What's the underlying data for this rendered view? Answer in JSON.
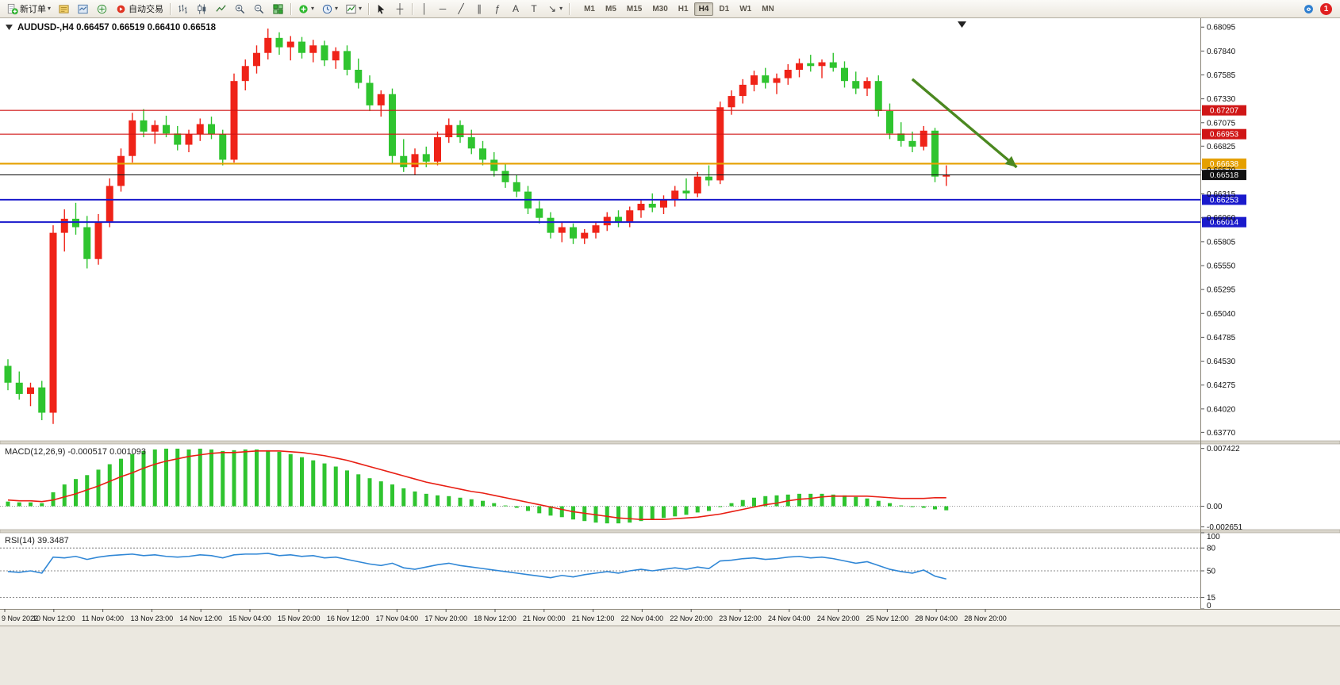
{
  "toolbar": {
    "new_order_label": "新订单",
    "auto_trading_label": "自动交易",
    "timeframes": [
      "M1",
      "M5",
      "M15",
      "M30",
      "H1",
      "H4",
      "D1",
      "W1",
      "MN"
    ],
    "active_timeframe": "H4",
    "notification_count": "1",
    "icons": {
      "caret": "▾",
      "vline": "│",
      "hline": "─",
      "trendline": "╱",
      "channel": "∥",
      "fibonacci": "ƒ",
      "text_tool": "A",
      "label_tool": "T",
      "arrows_tool": "↘",
      "crosshair": "┼"
    }
  },
  "chart_data": {
    "type": "candlestick",
    "symbol": "AUDUSD-,H4",
    "ohlc_display": "0.66457 0.66519 0.66410 0.66518",
    "y_range": [
      0.6368,
      0.6819
    ],
    "colors": {
      "up": "#ef2318",
      "down": "#2fc42f",
      "macd_hist": "#2fc42f",
      "macd_signal": "#e81f14",
      "rsi_line": "#3087d6",
      "annotation": "#4b8820"
    },
    "price_axis_ticks": [
      "0.68095",
      "0.67840",
      "0.67585",
      "0.67330",
      "0.67075",
      "0.66825",
      "0.66570",
      "0.66315",
      "0.66060",
      "0.65805",
      "0.65550",
      "0.65295",
      "0.65040",
      "0.64785",
      "0.64530",
      "0.64275",
      "0.64020",
      "0.63770"
    ],
    "horizontal_lines": [
      {
        "price": 0.67207,
        "label": "0.67207",
        "color": "#d01616",
        "width": 1.2
      },
      {
        "price": 0.66953,
        "label": "0.66953",
        "color": "#d01616",
        "width": 1.2
      },
      {
        "price": 0.66638,
        "label": "0.66638",
        "color": "#e5a000",
        "width": 2.2
      },
      {
        "price": 0.66518,
        "label": "0.66518",
        "color": "#111111",
        "width": 1
      },
      {
        "price": 0.66253,
        "label": "0.66253",
        "color": "#1a1acc",
        "width": 2
      },
      {
        "price": 0.66014,
        "label": "0.66014",
        "color": "#1a1acc",
        "width": 2
      }
    ],
    "arrow_annotation": {
      "x1_frac": 0.76,
      "price1": 0.6754,
      "x2_frac": 0.847,
      "price2": 0.666
    },
    "time_labels": [
      "9 Nov 2022",
      "10 Nov 12:00",
      "11 Nov 04:00",
      "13 Nov 23:00",
      "14 Nov 12:00",
      "15 Nov 04:00",
      "15 Nov 20:00",
      "16 Nov 12:00",
      "17 Nov 04:00",
      "17 Nov 20:00",
      "18 Nov 12:00",
      "21 Nov 00:00",
      "21 Nov 12:00",
      "22 Nov 04:00",
      "22 Nov 20:00",
      "23 Nov 12:00",
      "24 Nov 04:00",
      "24 Nov 20:00",
      "25 Nov 12:00",
      "28 Nov 04:00",
      "28 Nov 20:00"
    ],
    "candles": [
      [
        0.6448,
        0.6455,
        0.6422,
        0.643
      ],
      [
        0.643,
        0.6442,
        0.6412,
        0.6418
      ],
      [
        0.6418,
        0.643,
        0.6405,
        0.6425
      ],
      [
        0.6425,
        0.6432,
        0.639,
        0.6398
      ],
      [
        0.6398,
        0.6598,
        0.6386,
        0.659
      ],
      [
        0.659,
        0.6615,
        0.657,
        0.6605
      ],
      [
        0.6605,
        0.6622,
        0.6588,
        0.6596
      ],
      [
        0.6596,
        0.6608,
        0.6552,
        0.6562
      ],
      [
        0.6562,
        0.661,
        0.6556,
        0.6602
      ],
      [
        0.6602,
        0.6648,
        0.6596,
        0.664
      ],
      [
        0.664,
        0.668,
        0.6634,
        0.6672
      ],
      [
        0.6672,
        0.6718,
        0.6665,
        0.671
      ],
      [
        0.671,
        0.6722,
        0.6692,
        0.6698
      ],
      [
        0.6698,
        0.671,
        0.6685,
        0.6705
      ],
      [
        0.6705,
        0.6715,
        0.6692,
        0.6696
      ],
      [
        0.6696,
        0.6704,
        0.6678,
        0.6684
      ],
      [
        0.6684,
        0.67,
        0.6676,
        0.6695
      ],
      [
        0.6695,
        0.6712,
        0.6688,
        0.6706
      ],
      [
        0.6706,
        0.6714,
        0.669,
        0.6695
      ],
      [
        0.6695,
        0.67,
        0.6662,
        0.6668
      ],
      [
        0.6668,
        0.676,
        0.6665,
        0.6752
      ],
      [
        0.6752,
        0.6775,
        0.6742,
        0.6768
      ],
      [
        0.6768,
        0.679,
        0.676,
        0.6782
      ],
      [
        0.6782,
        0.6808,
        0.6775,
        0.6798
      ],
      [
        0.6798,
        0.6804,
        0.678,
        0.6788
      ],
      [
        0.6788,
        0.68,
        0.6774,
        0.6794
      ],
      [
        0.6794,
        0.6799,
        0.6776,
        0.6782
      ],
      [
        0.6782,
        0.6796,
        0.6772,
        0.679
      ],
      [
        0.679,
        0.6795,
        0.6768,
        0.6774
      ],
      [
        0.6774,
        0.6788,
        0.6765,
        0.6784
      ],
      [
        0.6784,
        0.679,
        0.6758,
        0.6764
      ],
      [
        0.6764,
        0.6776,
        0.6744,
        0.675
      ],
      [
        0.675,
        0.6758,
        0.672,
        0.6726
      ],
      [
        0.6726,
        0.6742,
        0.6714,
        0.6738
      ],
      [
        0.6738,
        0.6744,
        0.6664,
        0.6672
      ],
      [
        0.6672,
        0.669,
        0.6655,
        0.666
      ],
      [
        0.666,
        0.668,
        0.6652,
        0.6674
      ],
      [
        0.6674,
        0.6682,
        0.666,
        0.6666
      ],
      [
        0.6666,
        0.6698,
        0.6662,
        0.6692
      ],
      [
        0.6692,
        0.6712,
        0.6686,
        0.6705
      ],
      [
        0.6705,
        0.671,
        0.6686,
        0.6692
      ],
      [
        0.6692,
        0.67,
        0.6674,
        0.668
      ],
      [
        0.668,
        0.6688,
        0.6662,
        0.6668
      ],
      [
        0.6668,
        0.6676,
        0.665,
        0.6656
      ],
      [
        0.6656,
        0.6664,
        0.6638,
        0.6644
      ],
      [
        0.6644,
        0.6652,
        0.6628,
        0.6634
      ],
      [
        0.6634,
        0.664,
        0.661,
        0.6616
      ],
      [
        0.6616,
        0.6624,
        0.66,
        0.6606
      ],
      [
        0.6606,
        0.6612,
        0.6584,
        0.659
      ],
      [
        0.659,
        0.6602,
        0.658,
        0.6596
      ],
      [
        0.6596,
        0.66,
        0.6578,
        0.6584
      ],
      [
        0.6584,
        0.6594,
        0.6578,
        0.659
      ],
      [
        0.659,
        0.6602,
        0.6584,
        0.6598
      ],
      [
        0.6598,
        0.6612,
        0.6592,
        0.6607
      ],
      [
        0.6607,
        0.6614,
        0.6596,
        0.6601
      ],
      [
        0.6601,
        0.6618,
        0.6596,
        0.6614
      ],
      [
        0.6614,
        0.6626,
        0.6606,
        0.6621
      ],
      [
        0.6621,
        0.6632,
        0.6612,
        0.6617
      ],
      [
        0.6617,
        0.663,
        0.661,
        0.6626
      ],
      [
        0.6626,
        0.664,
        0.6618,
        0.6635
      ],
      [
        0.6635,
        0.6648,
        0.6626,
        0.6632
      ],
      [
        0.6632,
        0.6655,
        0.6628,
        0.665
      ],
      [
        0.665,
        0.6662,
        0.664,
        0.6646
      ],
      [
        0.6646,
        0.673,
        0.6642,
        0.6724
      ],
      [
        0.6724,
        0.6742,
        0.6716,
        0.6736
      ],
      [
        0.6736,
        0.6754,
        0.6728,
        0.6748
      ],
      [
        0.6748,
        0.6763,
        0.6741,
        0.6758
      ],
      [
        0.6758,
        0.6766,
        0.6744,
        0.675
      ],
      [
        0.675,
        0.676,
        0.6738,
        0.6755
      ],
      [
        0.6755,
        0.677,
        0.6748,
        0.6764
      ],
      [
        0.6764,
        0.6776,
        0.6756,
        0.6771
      ],
      [
        0.6771,
        0.678,
        0.6762,
        0.6768
      ],
      [
        0.6768,
        0.6775,
        0.6755,
        0.6772
      ],
      [
        0.6772,
        0.6782,
        0.6762,
        0.6766
      ],
      [
        0.6766,
        0.6773,
        0.6745,
        0.6752
      ],
      [
        0.6752,
        0.6762,
        0.6738,
        0.6744
      ],
      [
        0.6744,
        0.6756,
        0.6736,
        0.6752
      ],
      [
        0.6752,
        0.6758,
        0.6714,
        0.672
      ],
      [
        0.672,
        0.6728,
        0.669,
        0.6696
      ],
      [
        0.6696,
        0.6708,
        0.6682,
        0.6688
      ],
      [
        0.6688,
        0.6698,
        0.6676,
        0.6682
      ],
      [
        0.6682,
        0.6704,
        0.6678,
        0.6699
      ],
      [
        0.6699,
        0.6702,
        0.6644,
        0.665
      ],
      [
        0.665,
        0.6662,
        0.664,
        0.66518
      ]
    ],
    "indicators": [
      {
        "name": "MACD",
        "label": "MACD(12,26,9)",
        "values_text": "-0.000517 0.001093",
        "axis_labels": [
          "0.007422",
          "0.00",
          "-0.002651"
        ],
        "axis_values": [
          0.007422,
          0,
          -0.002651
        ],
        "y_range": [
          -0.003,
          0.008
        ],
        "histogram": [
          0.0006,
          0.0005,
          0.0005,
          0.0004,
          0.0018,
          0.0028,
          0.0035,
          0.004,
          0.0047,
          0.0054,
          0.0061,
          0.0067,
          0.0071,
          0.0073,
          0.0074,
          0.0074,
          0.0073,
          0.0074,
          0.0073,
          0.0071,
          0.0072,
          0.0073,
          0.0073,
          0.0072,
          0.007,
          0.0067,
          0.0063,
          0.0059,
          0.0055,
          0.0051,
          0.0046,
          0.0041,
          0.0036,
          0.0032,
          0.0028,
          0.0023,
          0.0019,
          0.0016,
          0.0014,
          0.0013,
          0.0011,
          0.0009,
          0.0007,
          0.0004,
          0.0001,
          -0.0002,
          -0.0006,
          -0.0009,
          -0.0012,
          -0.0014,
          -0.0017,
          -0.0019,
          -0.0021,
          -0.0022,
          -0.0022,
          -0.0021,
          -0.0019,
          -0.0017,
          -0.0015,
          -0.0013,
          -0.0011,
          -0.0008,
          -0.0006,
          0.0,
          0.0004,
          0.0008,
          0.0011,
          0.0013,
          0.0014,
          0.0015,
          0.0016,
          0.0016,
          0.0016,
          0.0015,
          0.0014,
          0.0012,
          0.001,
          0.0007,
          0.0004,
          0.0001,
          -0.0001,
          -0.0002,
          -0.0004,
          -0.000517
        ],
        "signal": [
          0.0008,
          0.0007,
          0.0007,
          0.0006,
          0.0008,
          0.0012,
          0.0016,
          0.0021,
          0.0026,
          0.0032,
          0.0038,
          0.0043,
          0.0049,
          0.0054,
          0.0058,
          0.0061,
          0.0064,
          0.0066,
          0.0068,
          0.0069,
          0.0069,
          0.007,
          0.0071,
          0.0071,
          0.0071,
          0.007,
          0.0069,
          0.0067,
          0.0065,
          0.0062,
          0.0059,
          0.0055,
          0.0051,
          0.0047,
          0.0043,
          0.0039,
          0.0035,
          0.0031,
          0.0028,
          0.0025,
          0.0022,
          0.0019,
          0.0017,
          0.0014,
          0.0011,
          0.0008,
          0.0005,
          0.0002,
          -0.0001,
          -0.0004,
          -0.0007,
          -0.0009,
          -0.0011,
          -0.0013,
          -0.0015,
          -0.0016,
          -0.0017,
          -0.0017,
          -0.0017,
          -0.0016,
          -0.0015,
          -0.0014,
          -0.0012,
          -0.001,
          -0.0007,
          -0.0004,
          -0.0001,
          0.0002,
          0.0004,
          0.0007,
          0.0009,
          0.001,
          0.0012,
          0.0013,
          0.0013,
          0.0013,
          0.0013,
          0.0012,
          0.0011,
          0.001,
          0.001,
          0.001,
          0.0011,
          0.001093
        ]
      },
      {
        "name": "RSI",
        "label": "RSI(14)",
        "value_text": "39.3487",
        "axis_labels": [
          "100",
          "80",
          "50",
          "15",
          "0"
        ],
        "axis_values": [
          100,
          80,
          50,
          15,
          0
        ],
        "levels": [
          80,
          50,
          15
        ],
        "y_range": [
          0,
          100
        ],
        "values": [
          49,
          48,
          50,
          47,
          68,
          67,
          69,
          65,
          68,
          70,
          71,
          72,
          70,
          71,
          69,
          68,
          69,
          71,
          70,
          67,
          71,
          72,
          72,
          73,
          70,
          71,
          69,
          70,
          67,
          68,
          65,
          62,
          59,
          57,
          60,
          54,
          52,
          55,
          58,
          60,
          57,
          55,
          53,
          51,
          49,
          47,
          45,
          43,
          41,
          44,
          42,
          45,
          47,
          49,
          47,
          50,
          52,
          50,
          52,
          54,
          52,
          55,
          53,
          63,
          64,
          66,
          67,
          65,
          66,
          68,
          69,
          67,
          68,
          66,
          63,
          60,
          62,
          57,
          52,
          49,
          47,
          51,
          43,
          39.3487
        ]
      }
    ]
  }
}
